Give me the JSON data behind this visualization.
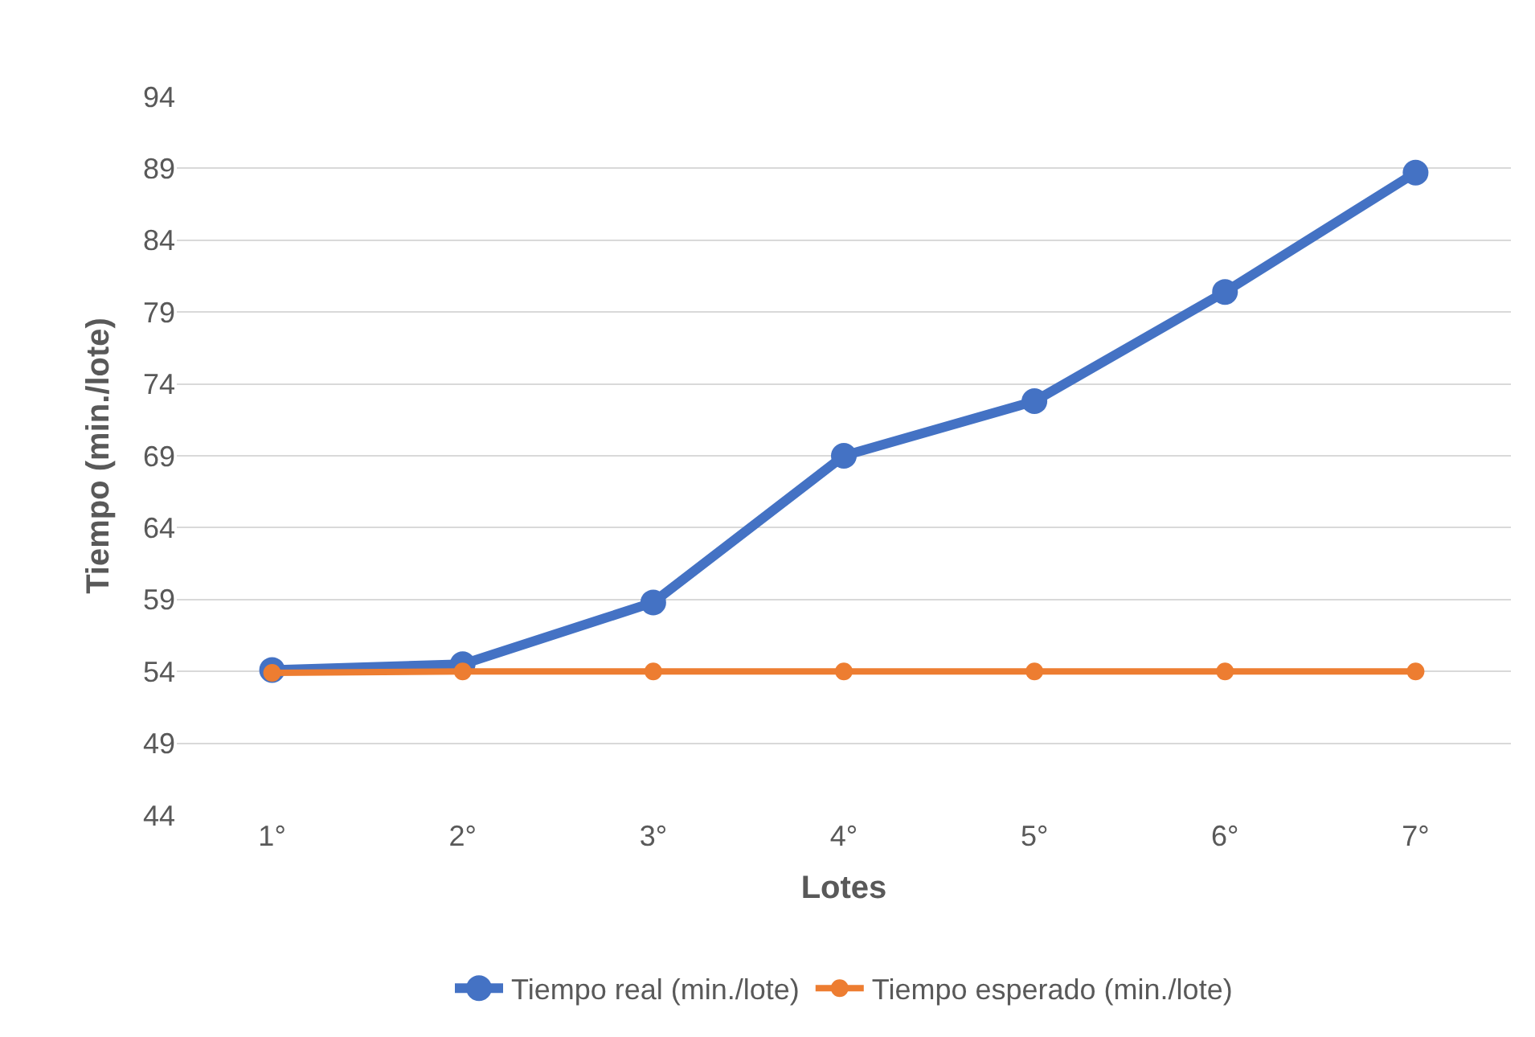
{
  "chart_data": {
    "type": "line",
    "xlabel": "Lotes",
    "ylabel": "Tiempo (min./lote)",
    "categories": [
      "1°",
      "2°",
      "3°",
      "4°",
      "5°",
      "6°",
      "7°"
    ],
    "series": [
      {
        "name": "Tiempo real (min./lote)",
        "color": "#4472c4",
        "values": [
          54.1,
          54.5,
          58.8,
          69.0,
          72.8,
          80.4,
          88.7
        ]
      },
      {
        "name": "Tiempo esperado (min./lote)",
        "color": "#ed7d31",
        "values": [
          53.9,
          54,
          54,
          54,
          54,
          54,
          54
        ]
      }
    ],
    "ylim": [
      44,
      94
    ],
    "yticks": [
      44,
      49,
      54,
      59,
      64,
      69,
      74,
      79,
      84,
      89,
      94
    ],
    "grid": "y",
    "legend": "bottom",
    "marker": "circle",
    "line_style": "solid"
  }
}
